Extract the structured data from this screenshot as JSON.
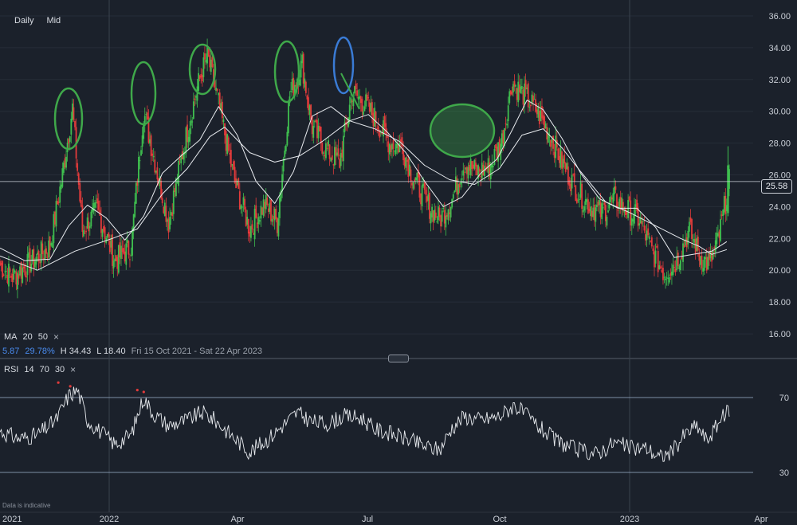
{
  "toolbar": {
    "daily": "Daily",
    "mid": "Mid"
  },
  "ma_legend": {
    "label": "MA",
    "p1": "20",
    "p2": "50",
    "close": "×"
  },
  "stats": {
    "change": "5.87",
    "change_pct": "29.78%",
    "high": "H 34.43",
    "low": "L 18.40",
    "range": "Fri 15 Oct 2021 - Sat 22 Apr 2023"
  },
  "rsi_legend": {
    "label": "RSI",
    "p1": "14",
    "p2": "70",
    "p3": "30",
    "close": "×"
  },
  "last_price": "25.58",
  "footnote": "Data is indicative",
  "colors": {
    "up": "#3fbf4f",
    "down": "#e23b3b",
    "ma": "#e8ebef",
    "rsi": "#e8ebef",
    "marker": "#3fa84a",
    "marker_blue": "#3a7bd5"
  },
  "chart_data": {
    "type": "candlestick",
    "price_axis": {
      "ylim": [
        14.5,
        37
      ],
      "ticks": [
        "36.00",
        "34.00",
        "32.00",
        "30.00",
        "28.00",
        "26.00",
        "24.00",
        "22.00",
        "20.00",
        "18.00",
        "16.00"
      ]
    },
    "rsi_axis": {
      "ylim": [
        10,
        90
      ],
      "ticks": [
        "70",
        "30"
      ]
    },
    "x_axis": {
      "ticks": [
        "2021",
        "2022",
        "Apr",
        "Jul",
        "Oct",
        "2023",
        "Apr"
      ]
    },
    "reference_line": 25.58,
    "close_anchors": [
      [
        0,
        20.3
      ],
      [
        10,
        19.6
      ],
      [
        25,
        20.5
      ],
      [
        40,
        21.5
      ],
      [
        50,
        26.0
      ],
      [
        58,
        30.2
      ],
      [
        66,
        22.5
      ],
      [
        78,
        23.8
      ],
      [
        92,
        20.6
      ],
      [
        105,
        21.5
      ],
      [
        115,
        30.0
      ],
      [
        125,
        26.5
      ],
      [
        135,
        23.0
      ],
      [
        145,
        27.0
      ],
      [
        158,
        31.5
      ],
      [
        166,
        33.5
      ],
      [
        175,
        30.5
      ],
      [
        188,
        25.5
      ],
      [
        200,
        22.6
      ],
      [
        212,
        24.2
      ],
      [
        222,
        23.0
      ],
      [
        232,
        31.0
      ],
      [
        242,
        33.0
      ],
      [
        250,
        29.0
      ],
      [
        262,
        27.5
      ],
      [
        272,
        26.8
      ],
      [
        282,
        31.2
      ],
      [
        292,
        30.5
      ],
      [
        300,
        29.6
      ],
      [
        312,
        28.0
      ],
      [
        322,
        27.8
      ],
      [
        330,
        26.0
      ],
      [
        342,
        24.2
      ],
      [
        352,
        23.2
      ],
      [
        362,
        24.5
      ],
      [
        372,
        26.8
      ],
      [
        382,
        26.2
      ],
      [
        392,
        26.5
      ],
      [
        402,
        28.2
      ],
      [
        410,
        31.8
      ],
      [
        420,
        31.0
      ],
      [
        430,
        30.0
      ],
      [
        440,
        28.6
      ],
      [
        450,
        26.8
      ],
      [
        462,
        25.0
      ],
      [
        472,
        24.1
      ],
      [
        482,
        23.6
      ],
      [
        492,
        24.5
      ],
      [
        502,
        23.8
      ],
      [
        512,
        23.2
      ],
      [
        522,
        21.2
      ],
      [
        532,
        19.8
      ],
      [
        542,
        20.6
      ],
      [
        552,
        22.5
      ],
      [
        560,
        21.0
      ],
      [
        568,
        20.3
      ],
      [
        576,
        22.2
      ],
      [
        584,
        25.6
      ]
    ],
    "ma_20": [
      [
        0,
        21.4
      ],
      [
        20,
        20.6
      ],
      [
        40,
        20.7
      ],
      [
        55,
        22.8
      ],
      [
        70,
        24.1
      ],
      [
        85,
        23.3
      ],
      [
        100,
        21.9
      ],
      [
        115,
        23.4
      ],
      [
        130,
        26.1
      ],
      [
        145,
        27.2
      ],
      [
        160,
        28.2
      ],
      [
        175,
        30.3
      ],
      [
        190,
        28.5
      ],
      [
        205,
        25.6
      ],
      [
        220,
        24.2
      ],
      [
        235,
        26.2
      ],
      [
        250,
        29.7
      ],
      [
        265,
        30.3
      ],
      [
        280,
        29.4
      ],
      [
        295,
        29.8
      ],
      [
        310,
        28.7
      ],
      [
        325,
        27.4
      ],
      [
        340,
        25.6
      ],
      [
        355,
        24.0
      ],
      [
        370,
        24.6
      ],
      [
        385,
        26.1
      ],
      [
        398,
        27.0
      ],
      [
        410,
        28.8
      ],
      [
        422,
        30.7
      ],
      [
        435,
        30.1
      ],
      [
        450,
        28.3
      ],
      [
        465,
        26.1
      ],
      [
        480,
        24.5
      ],
      [
        495,
        23.9
      ],
      [
        510,
        23.9
      ],
      [
        525,
        22.7
      ],
      [
        540,
        20.8
      ],
      [
        555,
        21.0
      ],
      [
        570,
        21.2
      ],
      [
        582,
        21.8
      ]
    ],
    "ma_50": [
      [
        0,
        20.9
      ],
      [
        30,
        20.0
      ],
      [
        60,
        21.2
      ],
      [
        90,
        22.0
      ],
      [
        110,
        22.6
      ],
      [
        130,
        24.8
      ],
      [
        150,
        26.4
      ],
      [
        168,
        28.4
      ],
      [
        180,
        29.0
      ],
      [
        200,
        27.4
      ],
      [
        220,
        26.8
      ],
      [
        240,
        27.2
      ],
      [
        258,
        28.1
      ],
      [
        280,
        29.4
      ],
      [
        300,
        28.9
      ],
      [
        320,
        28.1
      ],
      [
        340,
        26.6
      ],
      [
        360,
        25.7
      ],
      [
        380,
        25.4
      ],
      [
        400,
        26.4
      ],
      [
        418,
        28.5
      ],
      [
        435,
        28.9
      ],
      [
        450,
        27.7
      ],
      [
        465,
        26.2
      ],
      [
        485,
        24.3
      ],
      [
        505,
        23.6
      ],
      [
        525,
        22.8
      ],
      [
        545,
        22.0
      ],
      [
        560,
        21.5
      ],
      [
        570,
        21.0
      ],
      [
        582,
        21.3
      ]
    ],
    "rsi_anchors": [
      [
        0,
        52
      ],
      [
        15,
        48
      ],
      [
        30,
        50
      ],
      [
        45,
        58
      ],
      [
        55,
        71
      ],
      [
        62,
        74
      ],
      [
        70,
        58
      ],
      [
        80,
        52
      ],
      [
        92,
        45
      ],
      [
        105,
        50
      ],
      [
        115,
        70
      ],
      [
        122,
        62
      ],
      [
        135,
        55
      ],
      [
        150,
        58
      ],
      [
        162,
        62
      ],
      [
        172,
        58
      ],
      [
        185,
        50
      ],
      [
        200,
        41
      ],
      [
        215,
        48
      ],
      [
        228,
        56
      ],
      [
        238,
        62
      ],
      [
        250,
        57
      ],
      [
        262,
        56
      ],
      [
        275,
        60
      ],
      [
        290,
        59
      ],
      [
        300,
        53
      ],
      [
        312,
        51
      ],
      [
        325,
        48
      ],
      [
        340,
        44
      ],
      [
        352,
        42
      ],
      [
        362,
        54
      ],
      [
        372,
        60
      ],
      [
        385,
        58
      ],
      [
        400,
        60
      ],
      [
        412,
        66
      ],
      [
        422,
        60
      ],
      [
        432,
        54
      ],
      [
        445,
        47
      ],
      [
        462,
        42
      ],
      [
        478,
        40
      ],
      [
        492,
        46
      ],
      [
        505,
        43
      ],
      [
        518,
        43
      ],
      [
        528,
        38
      ],
      [
        538,
        41
      ],
      [
        548,
        50
      ],
      [
        558,
        55
      ],
      [
        566,
        47
      ],
      [
        575,
        56
      ],
      [
        584,
        64
      ]
    ],
    "markers": [
      {
        "shape": "ellipse",
        "color": "green"
      },
      {
        "shape": "ellipse",
        "color": "green"
      },
      {
        "shape": "ellipse",
        "color": "green"
      },
      {
        "shape": "ellipse",
        "color": "green"
      },
      {
        "shape": "ellipse",
        "color": "blue"
      },
      {
        "shape": "ellipse",
        "color": "green"
      },
      {
        "shape": "trendline",
        "color": "green"
      }
    ]
  }
}
